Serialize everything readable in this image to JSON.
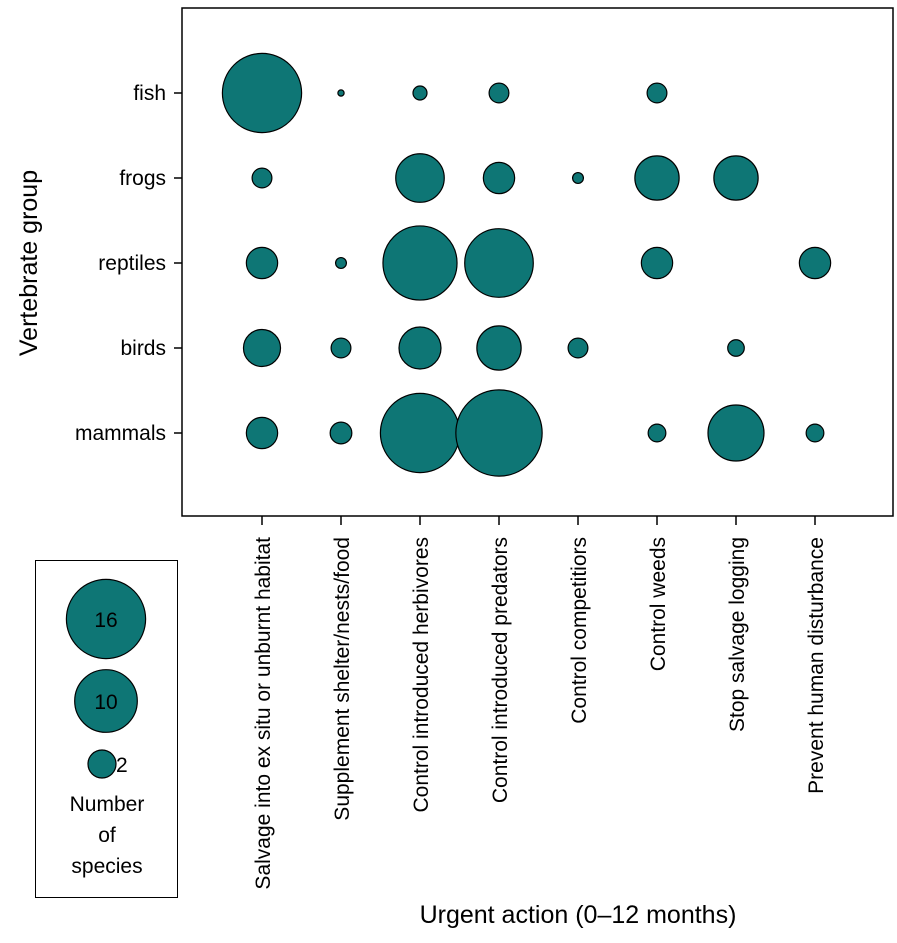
{
  "chart_data": {
    "type": "bubble",
    "xlabel": "Urgent action (0–12 months)",
    "ylabel": "Vertebrate group",
    "categories_x": [
      "Salvage into ex situ or unburnt habitat",
      "Supplement shelter/nests/food",
      "Control introduced herbivores",
      "Control introduced predators",
      "Control competitiors",
      "Control weeds",
      "Stop salvage logging",
      "Prevent human disturbance"
    ],
    "categories_y": [
      "fish",
      "frogs",
      "reptiles",
      "birds",
      "mammals"
    ],
    "points": [
      {
        "group": "fish",
        "action": "Salvage into ex situ or unburnt habitat",
        "value": 16
      },
      {
        "group": "fish",
        "action": "Supplement shelter/nests/food",
        "value": 0.1
      },
      {
        "group": "fish",
        "action": "Control introduced herbivores",
        "value": 0.5
      },
      {
        "group": "fish",
        "action": "Control introduced predators",
        "value": 1
      },
      {
        "group": "fish",
        "action": "Control weeds",
        "value": 1
      },
      {
        "group": "frogs",
        "action": "Salvage into ex situ or unburnt habitat",
        "value": 1
      },
      {
        "group": "frogs",
        "action": "Control introduced herbivores",
        "value": 6
      },
      {
        "group": "frogs",
        "action": "Control introduced predators",
        "value": 2.5
      },
      {
        "group": "frogs",
        "action": "Control competitiors",
        "value": 0.3
      },
      {
        "group": "frogs",
        "action": "Control weeds",
        "value": 5
      },
      {
        "group": "frogs",
        "action": "Stop salvage logging",
        "value": 5
      },
      {
        "group": "reptiles",
        "action": "Salvage into ex situ or unburnt habitat",
        "value": 2.5
      },
      {
        "group": "reptiles",
        "action": "Supplement shelter/nests/food",
        "value": 0.3
      },
      {
        "group": "reptiles",
        "action": "Control introduced herbivores",
        "value": 14
      },
      {
        "group": "reptiles",
        "action": "Control introduced predators",
        "value": 12
      },
      {
        "group": "reptiles",
        "action": "Control weeds",
        "value": 2.5
      },
      {
        "group": "reptiles",
        "action": "Prevent human disturbance",
        "value": 2.5
      },
      {
        "group": "birds",
        "action": "Salvage into ex situ or unburnt habitat",
        "value": 3.5
      },
      {
        "group": "birds",
        "action": "Supplement shelter/nests/food",
        "value": 1
      },
      {
        "group": "birds",
        "action": "Control introduced herbivores",
        "value": 4.5
      },
      {
        "group": "birds",
        "action": "Control introduced predators",
        "value": 5
      },
      {
        "group": "birds",
        "action": "Control competitiors",
        "value": 1
      },
      {
        "group": "birds",
        "action": "Stop salvage logging",
        "value": 0.7
      },
      {
        "group": "mammals",
        "action": "Salvage into ex situ or unburnt habitat",
        "value": 2.5
      },
      {
        "group": "mammals",
        "action": "Supplement shelter/nests/food",
        "value": 1.2
      },
      {
        "group": "mammals",
        "action": "Control introduced herbivores",
        "value": 16
      },
      {
        "group": "mammals",
        "action": "Control introduced predators",
        "value": 19
      },
      {
        "group": "mammals",
        "action": "Control weeds",
        "value": 0.8
      },
      {
        "group": "mammals",
        "action": "Stop salvage logging",
        "value": 8
      },
      {
        "group": "mammals",
        "action": "Prevent human disturbance",
        "value": 0.8
      }
    ],
    "legend": {
      "title": "Number of species",
      "title_lines": [
        "Number",
        "of",
        "species"
      ],
      "entries": [
        {
          "value": 16,
          "label": "16"
        },
        {
          "value": 10,
          "label": "10"
        },
        {
          "value": 2,
          "label": "2"
        }
      ]
    },
    "colors": {
      "bubble_fill": "#0e7675",
      "bubble_stroke": "#000000"
    }
  }
}
